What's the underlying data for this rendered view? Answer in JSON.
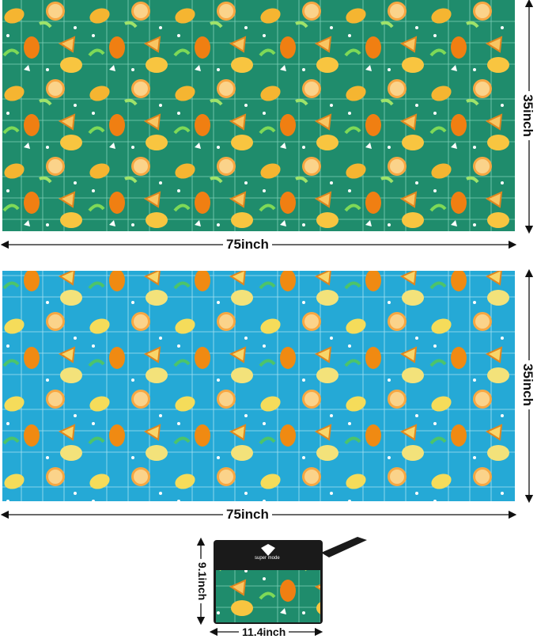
{
  "towel_top": {
    "width_label": "75inch",
    "height_label": "35inch",
    "color": "#1f8c6c"
  },
  "towel_bottom": {
    "width_label": "75inch",
    "height_label": "35inch",
    "color": "#25a9d6"
  },
  "bag": {
    "brand": "super mode",
    "width_label": "11.4inch",
    "height_label": "9.1inch",
    "color": "#1a1a1a"
  }
}
